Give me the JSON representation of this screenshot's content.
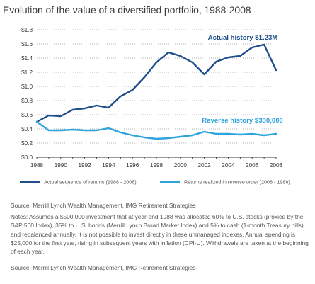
{
  "chart_data": {
    "type": "line",
    "title": "Evolution of the value of a diversified portfolio, 1988-2008",
    "x": [
      1988,
      1989,
      1990,
      1991,
      1992,
      1993,
      1994,
      1995,
      1996,
      1997,
      1998,
      1999,
      2000,
      2001,
      2002,
      2003,
      2004,
      2005,
      2006,
      2007,
      2008
    ],
    "xticks": [
      "1988",
      "1990",
      "1992",
      "1994",
      "1996",
      "1998",
      "2000",
      "2002",
      "2004",
      "2006",
      "2008"
    ],
    "xlim": [
      1988,
      2008
    ],
    "ylim": [
      0,
      1.8
    ],
    "yticks": [
      "$0.0",
      "$0.2",
      "$0.4",
      "$0.6",
      "$0.8",
      "$1.0",
      "$1.2",
      "$1.4",
      "$1.6",
      "$1.8"
    ],
    "grid": true,
    "legend_position": "bottom",
    "series": [
      {
        "name": "Actual sequence of returns (1988 - 2008)",
        "color": "#1f4e8c",
        "values": [
          0.5,
          0.59,
          0.58,
          0.67,
          0.69,
          0.73,
          0.7,
          0.86,
          0.95,
          1.13,
          1.34,
          1.48,
          1.43,
          1.34,
          1.17,
          1.35,
          1.41,
          1.43,
          1.55,
          1.59,
          1.23
        ]
      },
      {
        "name": "Returns realized in reverse order (2008 - 1988)",
        "color": "#2fa3dc",
        "values": [
          0.5,
          0.38,
          0.38,
          0.39,
          0.38,
          0.38,
          0.41,
          0.35,
          0.31,
          0.28,
          0.26,
          0.27,
          0.29,
          0.31,
          0.36,
          0.33,
          0.33,
          0.32,
          0.33,
          0.31,
          0.33
        ]
      }
    ],
    "annotations": [
      {
        "text": "Actual history  $1.23M",
        "series": 0,
        "x": 2002.3,
        "y": 1.66
      },
      {
        "text": "Reverse history  $330,000",
        "series": 1,
        "x": 2001.8,
        "y": 0.49
      }
    ]
  },
  "source_top": "Source: Merrill Lynch Wealth Management, IMG Retirement Strategies",
  "notes": "Notes: Assumes a $500,000 investment that at year-end 1988 was allocated 60% to U.S. stocks (proxied by the S&P 500 Index), 35% to U.S. bonds (Merrill Lynch Broad Market Index) and 5% to cash (1-month Treasury bills) and rebalanced annually. It is not possible to invest directly in these unmanaged indexes. Annual spending is $25,000 for the first year, rising in subsequent years with inflation (CPI-U). Withdrawals are taken at the beginning of each year.",
  "source_bottom": "Source: Merrill Lynch Wealth Management, IMG Retirement Strategies"
}
